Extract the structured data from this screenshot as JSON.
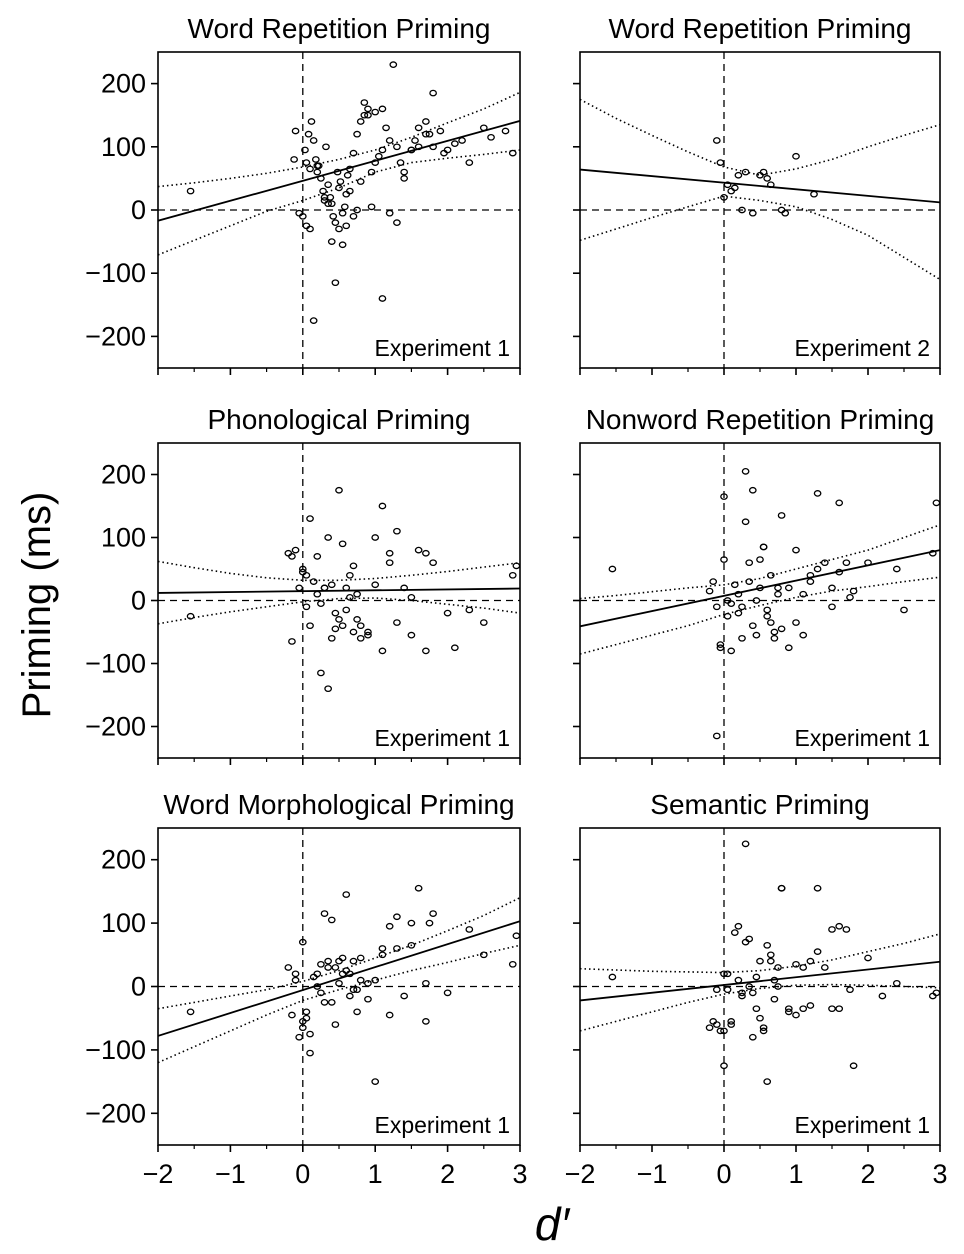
{
  "ylabel": "Priming (ms)",
  "xlabel": "d′",
  "y_tick_labels": [
    "200",
    "100",
    "0",
    "−100",
    "−200"
  ],
  "x_tick_labels": [
    "−2",
    "−1",
    "0",
    "1",
    "2",
    "3"
  ],
  "chart_data": [
    {
      "type": "scatter",
      "title": "Word Repetition Priming",
      "annotation": "Experiment 1",
      "xlim": [
        -2,
        3
      ],
      "ylim": [
        -250,
        250
      ],
      "x": [
        0.03,
        0.05,
        0.08,
        0.12,
        0.15,
        0.18,
        0.2,
        0.22,
        0.25,
        0.28,
        0.3,
        0.32,
        0.35,
        0.38,
        0.4,
        0.42,
        0.45,
        0.48,
        0.5,
        0.52,
        0.55,
        0.58,
        0.6,
        0.62,
        0.65,
        0.7,
        0.75,
        0.8,
        0.85,
        0.9,
        0.95,
        1.0,
        1.05,
        1.1,
        1.15,
        1.2,
        1.3,
        1.35,
        1.4,
        1.5,
        1.55,
        1.6,
        1.7,
        1.75,
        1.8,
        1.9,
        1.95,
        2.0,
        2.1,
        2.2,
        2.3,
        2.5,
        2.6,
        2.8,
        2.9,
        -1.55,
        -0.1,
        -0.05,
        0.0,
        0.05,
        0.1,
        0.1,
        0.2,
        0.3,
        0.4,
        0.5,
        0.6,
        0.7,
        0.8,
        0.9,
        1.0,
        1.1,
        1.2,
        1.3,
        1.4,
        1.5,
        1.6,
        1.7,
        1.8,
        0.45,
        1.1,
        0.15,
        0.35,
        0.55,
        0.65,
        0.75,
        0.85,
        0.95,
        1.25,
        -0.12
      ],
      "y": [
        95,
        75,
        120,
        140,
        110,
        80,
        60,
        70,
        50,
        30,
        15,
        100,
        40,
        20,
        10,
        -10,
        -20,
        60,
        35,
        45,
        -5,
        5,
        25,
        55,
        65,
        90,
        120,
        140,
        150,
        160,
        60,
        75,
        85,
        95,
        130,
        110,
        100,
        75,
        50,
        95,
        110,
        130,
        140,
        120,
        100,
        125,
        90,
        95,
        105,
        110,
        75,
        130,
        115,
        125,
        90,
        30,
        125,
        -5,
        -10,
        -25,
        -30,
        65,
        70,
        20,
        -50,
        -30,
        -25,
        -10,
        45,
        150,
        155,
        160,
        -5,
        -20,
        60,
        95,
        100,
        120,
        185,
        -115,
        -140,
        -175,
        10,
        -55,
        30,
        0,
        170,
        5,
        230,
        80
      ],
      "regression": {
        "x": [
          -2,
          3
        ],
        "y": [
          -17,
          141
        ]
      },
      "ci_upper": {
        "x": [
          -2,
          -1.5,
          -1,
          -0.5,
          0,
          0.5,
          1,
          1.5,
          2,
          2.5,
          3
        ],
        "y": [
          37,
          43,
          50,
          58,
          68,
          80,
          95,
          115,
          138,
          160,
          186
        ]
      },
      "ci_lower": {
        "x": [
          -2,
          -1.5,
          -1,
          -0.5,
          0,
          0.5,
          1,
          1.5,
          2,
          2.5,
          3
        ],
        "y": [
          -71,
          -48,
          -25,
          -2,
          15,
          35,
          60,
          75,
          82,
          88,
          95
        ]
      }
    },
    {
      "type": "scatter",
      "title": "Word Repetition Priming",
      "annotation": "Experiment 2",
      "xlim": [
        -2,
        3
      ],
      "ylim": [
        -250,
        250
      ],
      "x": [
        -0.1,
        -0.05,
        0.0,
        0.05,
        0.1,
        0.15,
        0.2,
        0.25,
        0.3,
        0.4,
        0.5,
        0.55,
        0.6,
        0.65,
        0.8,
        0.85,
        1.0,
        1.25
      ],
      "y": [
        110,
        75,
        20,
        40,
        30,
        35,
        55,
        0,
        60,
        -5,
        55,
        60,
        50,
        40,
        0,
        -5,
        85,
        25
      ],
      "regression": {
        "x": [
          -2,
          3
        ],
        "y": [
          64,
          12
        ]
      },
      "ci_upper": {
        "x": [
          -2,
          -1.5,
          -1,
          -0.5,
          0,
          0.5,
          1,
          1.5,
          2,
          2.5,
          3
        ],
        "y": [
          175,
          145,
          118,
          92,
          68,
          55,
          65,
          80,
          100,
          118,
          135
        ]
      },
      "ci_lower": {
        "x": [
          -2,
          -1.5,
          -1,
          -0.5,
          0,
          0.5,
          1,
          1.5,
          2,
          2.5,
          3
        ],
        "y": [
          -48,
          -30,
          -12,
          5,
          22,
          15,
          5,
          -15,
          -40,
          -75,
          -110
        ]
      }
    },
    {
      "type": "scatter",
      "title": "Phonological Priming",
      "annotation": "Experiment 1",
      "xlim": [
        -2,
        3
      ],
      "ylim": [
        -250,
        250
      ],
      "x": [
        -0.2,
        -0.15,
        -0.1,
        -0.05,
        0.0,
        0.05,
        0.1,
        0.15,
        0.2,
        0.25,
        0.3,
        0.35,
        0.4,
        0.45,
        0.5,
        0.55,
        0.6,
        0.65,
        0.7,
        0.75,
        0.8,
        0.9,
        1.0,
        1.1,
        1.2,
        1.3,
        1.4,
        1.5,
        1.6,
        1.7,
        1.8,
        2.0,
        2.1,
        2.3,
        2.5,
        2.9,
        -1.55,
        -0.15,
        0.0,
        0.05,
        0.1,
        0.2,
        0.3,
        0.4,
        0.5,
        0.6,
        0.7,
        0.8,
        0.9,
        1.0,
        1.1,
        1.2,
        1.3,
        1.5,
        1.7,
        0.25,
        0.35,
        0.45,
        0.55,
        0.65,
        0.75,
        2.95
      ],
      "y": [
        75,
        70,
        80,
        20,
        50,
        -10,
        -40,
        30,
        10,
        -5,
        20,
        100,
        -60,
        -20,
        -30,
        -40,
        20,
        40,
        -50,
        10,
        -60,
        -50,
        100,
        -80,
        75,
        -35,
        20,
        -55,
        80,
        -80,
        60,
        -20,
        -75,
        -15,
        -35,
        40,
        -25,
        -65,
        45,
        40,
        130,
        70,
        20,
        25,
        175,
        -15,
        55,
        -40,
        -55,
        25,
        150,
        60,
        110,
        5,
        75,
        -115,
        -140,
        -45,
        90,
        5,
        -30,
        55
      ],
      "regression": {
        "x": [
          -2,
          3
        ],
        "y": [
          12,
          19
        ]
      },
      "ci_upper": {
        "x": [
          -2,
          -1.5,
          -1,
          -0.5,
          0,
          0.5,
          1,
          1.5,
          2,
          2.5,
          3
        ],
        "y": [
          62,
          52,
          43,
          36,
          32,
          32,
          35,
          40,
          46,
          53,
          60
        ]
      },
      "ci_lower": {
        "x": [
          -2,
          -1.5,
          -1,
          -0.5,
          0,
          0.5,
          1,
          1.5,
          2,
          2.5,
          3
        ],
        "y": [
          -37,
          -27,
          -18,
          -10,
          -2,
          3,
          4,
          0,
          -6,
          -12,
          -20
        ]
      }
    },
    {
      "type": "scatter",
      "title": "Nonword Repetition Priming",
      "annotation": "Experiment 1",
      "xlim": [
        -2,
        3
      ],
      "ylim": [
        -250,
        250
      ],
      "x": [
        -0.2,
        -0.15,
        -0.1,
        -0.05,
        0.0,
        0.05,
        0.1,
        0.15,
        0.2,
        0.25,
        0.3,
        0.35,
        0.4,
        0.45,
        0.5,
        0.55,
        0.6,
        0.65,
        0.7,
        0.75,
        0.8,
        0.9,
        1.0,
        1.1,
        1.2,
        1.3,
        1.4,
        1.5,
        1.6,
        1.7,
        1.8,
        2.0,
        2.4,
        2.5,
        2.9,
        -1.55,
        -0.1,
        0.0,
        0.05,
        0.1,
        0.2,
        0.3,
        0.4,
        0.5,
        0.6,
        0.7,
        0.8,
        0.9,
        1.0,
        1.1,
        1.2,
        1.3,
        1.5,
        1.6,
        1.75,
        0.25,
        0.35,
        0.45,
        0.55,
        0.65,
        0.75,
        2.95,
        -0.05
      ],
      "y": [
        15,
        30,
        -10,
        -70,
        65,
        -25,
        -80,
        25,
        10,
        -60,
        125,
        30,
        -40,
        0,
        20,
        85,
        -15,
        40,
        -50,
        10,
        -45,
        -75,
        80,
        -55,
        30,
        170,
        60,
        -10,
        155,
        60,
        15,
        60,
        50,
        -15,
        75,
        50,
        -215,
        165,
        0,
        -5,
        -20,
        205,
        175,
        65,
        -25,
        -60,
        135,
        20,
        -35,
        10,
        40,
        50,
        20,
        45,
        5,
        -10,
        60,
        -55,
        85,
        -35,
        20,
        155,
        -75
      ],
      "regression": {
        "x": [
          -2,
          3
        ],
        "y": [
          -41,
          80
        ]
      },
      "ci_upper": {
        "x": [
          -2,
          -1.5,
          -1,
          -0.5,
          0,
          0.5,
          1,
          1.5,
          2,
          2.5,
          3
        ],
        "y": [
          3,
          8,
          14,
          20,
          25,
          35,
          50,
          65,
          80,
          100,
          120
        ]
      },
      "ci_lower": {
        "x": [
          -2,
          -1.5,
          -1,
          -0.5,
          0,
          0.5,
          1,
          1.5,
          2,
          2.5,
          3
        ],
        "y": [
          -85,
          -70,
          -55,
          -40,
          -22,
          -8,
          5,
          15,
          22,
          30,
          37
        ]
      }
    },
    {
      "type": "scatter",
      "title": "Word Morphological Priming",
      "annotation": "Experiment 1",
      "xlim": [
        -2,
        3
      ],
      "ylim": [
        -250,
        250
      ],
      "x": [
        -0.2,
        -0.15,
        -0.1,
        -0.05,
        0.0,
        0.05,
        0.1,
        0.15,
        0.2,
        0.25,
        0.3,
        0.35,
        0.4,
        0.45,
        0.5,
        0.55,
        0.6,
        0.65,
        0.7,
        0.75,
        0.8,
        0.9,
        1.0,
        1.1,
        1.2,
        1.3,
        1.4,
        1.5,
        1.6,
        1.7,
        1.8,
        2.0,
        2.3,
        2.5,
        2.9,
        -1.55,
        -0.1,
        0.0,
        0.05,
        0.1,
        0.2,
        0.3,
        0.4,
        0.5,
        0.6,
        0.7,
        0.8,
        0.9,
        1.0,
        1.1,
        1.2,
        1.3,
        1.5,
        1.7,
        1.75,
        0.25,
        0.35,
        0.45,
        0.55,
        0.65,
        0.75,
        2.95,
        0.0
      ],
      "y": [
        30,
        -45,
        20,
        -80,
        -55,
        -40,
        -105,
        15,
        0,
        -10,
        115,
        40,
        -25,
        30,
        5,
        20,
        145,
        -15,
        40,
        -40,
        10,
        -20,
        -150,
        50,
        95,
        60,
        -15,
        100,
        155,
        5,
        115,
        -10,
        90,
        50,
        35,
        -40,
        10,
        70,
        -50,
        -75,
        20,
        -25,
        105,
        40,
        25,
        -5,
        45,
        5,
        10,
        60,
        -45,
        110,
        65,
        -55,
        100,
        35,
        30,
        -60,
        45,
        20,
        -5,
        80,
        -65
      ],
      "regression": {
        "x": [
          -2,
          3
        ],
        "y": [
          -78,
          103
        ]
      },
      "ci_upper": {
        "x": [
          -2,
          -1.5,
          -1,
          -0.5,
          0,
          0.5,
          1,
          1.5,
          2,
          2.5,
          3
        ],
        "y": [
          -35,
          -25,
          -15,
          -5,
          8,
          25,
          45,
          65,
          88,
          112,
          140
        ]
      },
      "ci_lower": {
        "x": [
          -2,
          -1.5,
          -1,
          -0.5,
          0,
          0.5,
          1,
          1.5,
          2,
          2.5,
          3
        ],
        "y": [
          -120,
          -95,
          -70,
          -45,
          -22,
          -5,
          10,
          25,
          38,
          52,
          65
        ]
      }
    },
    {
      "type": "scatter",
      "title": "Semantic Priming",
      "annotation": "Experiment 1",
      "xlim": [
        -2,
        3
      ],
      "ylim": [
        -250,
        250
      ],
      "x": [
        -0.2,
        -0.15,
        -0.1,
        -0.05,
        0.0,
        0.05,
        0.1,
        0.15,
        0.2,
        0.25,
        0.3,
        0.35,
        0.4,
        0.45,
        0.5,
        0.55,
        0.6,
        0.65,
        0.7,
        0.75,
        0.8,
        0.9,
        1.0,
        1.1,
        1.2,
        1.3,
        1.4,
        1.5,
        1.6,
        1.7,
        1.8,
        2.0,
        2.2,
        2.4,
        2.9,
        -1.55,
        -0.1,
        0.0,
        0.05,
        0.1,
        0.2,
        0.3,
        0.4,
        0.5,
        0.6,
        0.7,
        0.8,
        0.9,
        1.0,
        1.1,
        1.2,
        1.3,
        1.5,
        1.6,
        1.75,
        0.25,
        0.35,
        0.45,
        0.55,
        0.65,
        0.75,
        2.95,
        0.0
      ],
      "y": [
        -65,
        -55,
        -60,
        -70,
        20,
        -5,
        -55,
        85,
        10,
        -10,
        225,
        0,
        -80,
        -35,
        40,
        -70,
        -150,
        40,
        10,
        0,
        155,
        -40,
        35,
        -35,
        40,
        155,
        30,
        -35,
        95,
        90,
        -125,
        45,
        -15,
        5,
        -15,
        15,
        -5,
        -125,
        20,
        -60,
        95,
        70,
        -10,
        -50,
        65,
        -20,
        155,
        -35,
        -45,
        30,
        -30,
        55,
        90,
        -35,
        -5,
        -15,
        75,
        15,
        -65,
        50,
        30,
        -10,
        -70
      ],
      "regression": {
        "x": [
          -2,
          3
        ],
        "y": [
          -22,
          39
        ]
      },
      "ci_upper": {
        "x": [
          -2,
          -1.5,
          -1,
          -0.5,
          0,
          0.5,
          1,
          1.5,
          2,
          2.5,
          3
        ],
        "y": [
          28,
          26,
          24,
          23,
          22,
          25,
          32,
          42,
          55,
          68,
          83
        ]
      },
      "ci_lower": {
        "x": [
          -2,
          -1.5,
          -1,
          -0.5,
          0,
          0.5,
          1,
          1.5,
          2,
          2.5,
          3
        ],
        "y": [
          -70,
          -55,
          -40,
          -25,
          -12,
          -3,
          2,
          3,
          2,
          0,
          -2
        ]
      }
    }
  ]
}
